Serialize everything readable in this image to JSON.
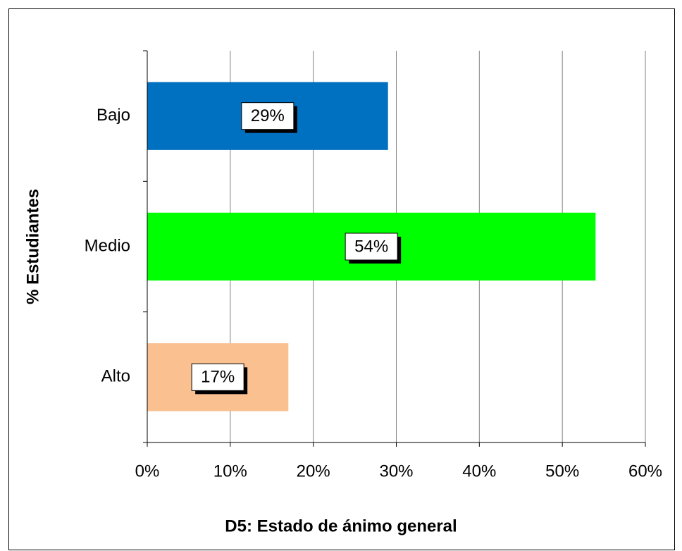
{
  "chart_data": {
    "type": "barh",
    "title": "D5: Estado de ánimo general",
    "y_label": "% Estudiantes",
    "categories": [
      "Bajo",
      "Medio",
      "Alto"
    ],
    "values": [
      29,
      54,
      17
    ],
    "value_labels": [
      "29%",
      "54%",
      "17%"
    ],
    "colors": [
      "#0070c0",
      "#00ff00",
      "#fac090"
    ],
    "xlim": [
      0,
      60
    ],
    "xticks": [
      {
        "value": 0,
        "label": "0%"
      },
      {
        "value": 10,
        "label": "10%"
      },
      {
        "value": 20,
        "label": "20%"
      },
      {
        "value": 30,
        "label": "30%"
      },
      {
        "value": 40,
        "label": "40%"
      },
      {
        "value": 50,
        "label": "50%"
      },
      {
        "value": 60,
        "label": "60%"
      }
    ],
    "grid": true
  }
}
